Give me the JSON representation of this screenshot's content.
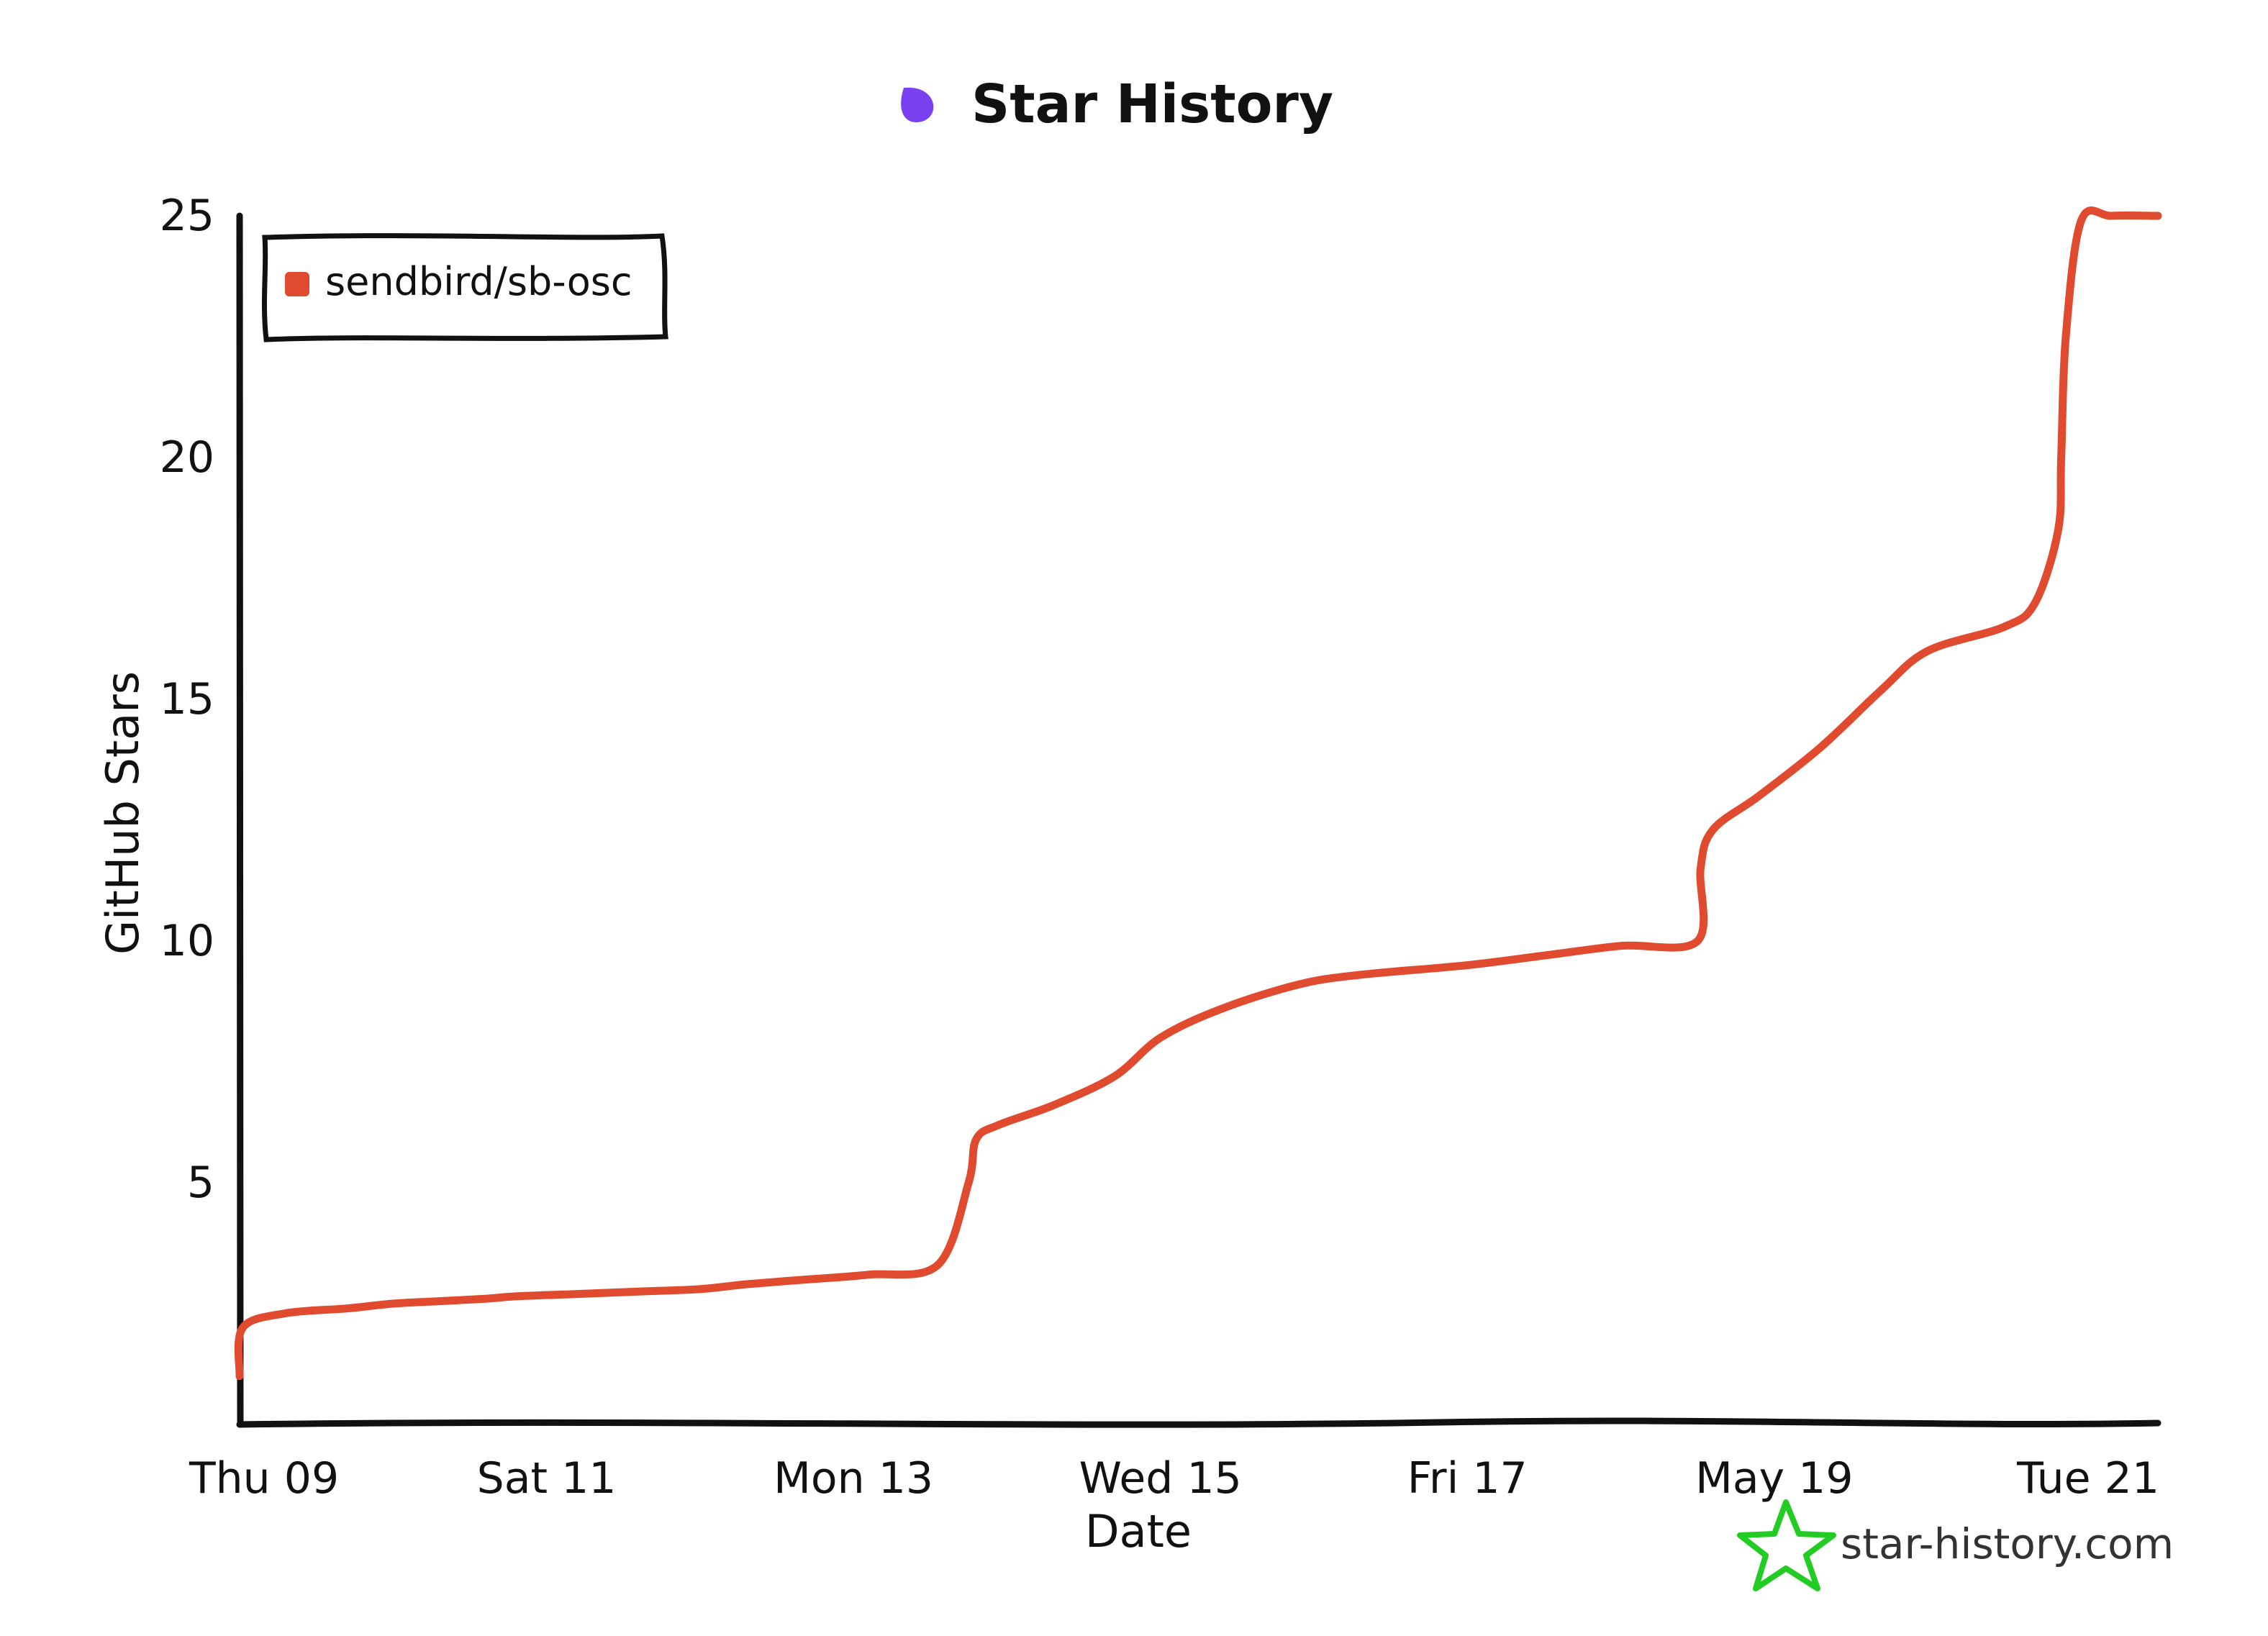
{
  "chart_data": {
    "type": "line",
    "title": "Star History",
    "xlabel": "Date",
    "ylabel": "GitHub Stars",
    "x_ticks": [
      "Thu 09",
      "Sat 11",
      "Mon 13",
      "Wed 15",
      "Fri 17",
      "May 19",
      "Tue 21"
    ],
    "y_ticks": [
      5,
      10,
      15,
      20,
      25
    ],
    "xlim": [
      0,
      12.5
    ],
    "ylim": [
      0,
      25
    ],
    "grid": false,
    "legend_position": "top-left",
    "series": [
      {
        "name": "sendbird/sb-osc",
        "color": "#e04a2e",
        "x": [
          0.0,
          0.02,
          0.3,
          0.7,
          1.0,
          1.3,
          1.6,
          1.8,
          2.2,
          2.6,
          3.0,
          3.3,
          3.7,
          4.1,
          4.55,
          4.75,
          4.8,
          4.95,
          5.3,
          5.7,
          6.0,
          6.4,
          6.9,
          7.3,
          8.0,
          8.5,
          9.0,
          9.5,
          9.52,
          9.6,
          9.9,
          10.3,
          10.7,
          11.0,
          11.5,
          11.7,
          11.85,
          11.87,
          11.9,
          12.0,
          12.2,
          12.5
        ],
        "values": [
          1.0,
          2.0,
          2.3,
          2.4,
          2.5,
          2.55,
          2.6,
          2.65,
          2.7,
          2.75,
          2.8,
          2.9,
          3.0,
          3.1,
          3.3,
          5.0,
          5.9,
          6.2,
          6.6,
          7.2,
          8.0,
          8.6,
          9.1,
          9.3,
          9.5,
          9.7,
          9.9,
          10.0,
          11.5,
          12.3,
          13.0,
          14.0,
          15.2,
          16.0,
          16.5,
          17.0,
          18.5,
          20.0,
          22.5,
          24.9,
          25.0,
          25.0
        ]
      }
    ]
  },
  "watermark": "star-history.com",
  "colors": {
    "logo": "#7b3ff2",
    "line": "#e04a2e",
    "watermark_icon": "#22cc22",
    "axis": "#111111"
  },
  "icons": {
    "title_logo": "star-history-logo-icon",
    "watermark": "star-outline-icon"
  }
}
